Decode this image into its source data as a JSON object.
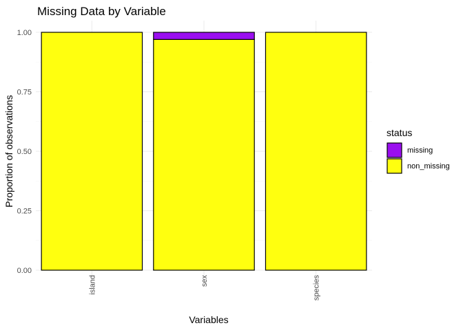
{
  "chart_data": {
    "type": "bar",
    "stacked": true,
    "title": "Missing Data by Variable",
    "xlabel": "Variables",
    "ylabel": "Proportion of observations",
    "categories": [
      "island",
      "sex",
      "species"
    ],
    "ylim": [
      0,
      1
    ],
    "yticks": [
      "0.00",
      "0.25",
      "0.50",
      "0.75",
      "1.00"
    ],
    "yticks_values": [
      0,
      0.25,
      0.5,
      0.75,
      1.0
    ],
    "grid": true,
    "legend": {
      "title": "status",
      "position": "right"
    },
    "series": [
      {
        "name": "non_missing",
        "color": "#ffff0f",
        "values": [
          1.0,
          0.97,
          1.0
        ]
      },
      {
        "name": "missing",
        "color": "#9a0fef",
        "values": [
          0.0,
          0.03,
          0.0
        ]
      }
    ]
  }
}
